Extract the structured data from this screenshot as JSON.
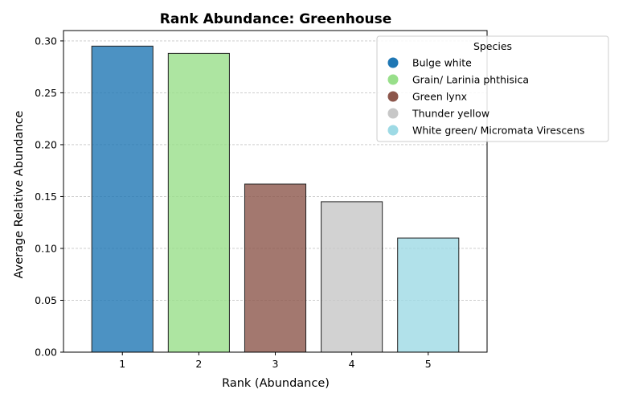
{
  "chart_data": {
    "type": "bar",
    "title": "Rank Abundance: Greenhouse",
    "xlabel": "Rank (Abundance)",
    "ylabel": "Average Relative Abundance",
    "categories": [
      "1",
      "2",
      "3",
      "4",
      "5"
    ],
    "values": [
      0.295,
      0.288,
      0.162,
      0.145,
      0.11
    ],
    "species": [
      "Bulge white",
      "Grain/ Larinia phthisica",
      "Green lynx",
      "Thunder yellow",
      "White green/ Micromata Virescens"
    ],
    "colors": [
      "#1f77b4",
      "#98df8a",
      "#8c564b",
      "#c7c7c7",
      "#9edae5"
    ],
    "ylim": [
      0,
      0.31
    ],
    "yticks": [
      "0.00",
      "0.05",
      "0.10",
      "0.15",
      "0.20",
      "0.25",
      "0.30"
    ],
    "ytick_values": [
      0,
      0.05,
      0.1,
      0.15,
      0.2,
      0.25,
      0.3
    ],
    "grid": "y-dashed",
    "legend": {
      "title": "Species",
      "placement": "top-right, outside"
    }
  }
}
